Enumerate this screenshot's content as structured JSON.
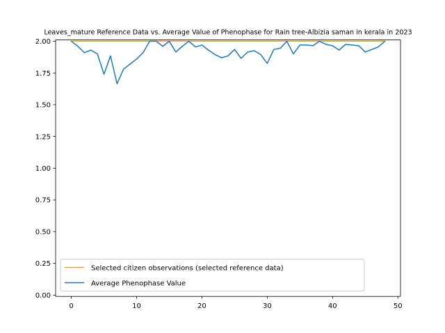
{
  "chart_data": {
    "type": "line",
    "title": "Leaves_mature Reference Data vs. Average Value of Phenophase for Rain tree-Albizia saman in kerala in 2023",
    "xlabel": "",
    "ylabel": "",
    "xlim": [
      -2.4,
      50.4
    ],
    "ylim": [
      -0.01,
      2.01
    ],
    "xticks": [
      0,
      10,
      20,
      30,
      40,
      50
    ],
    "yticks": [
      "0.00",
      "0.25",
      "0.50",
      "0.75",
      "1.00",
      "1.25",
      "1.50",
      "1.75",
      "2.00"
    ],
    "legend_position": "lower-left",
    "x": [
      0,
      1,
      2,
      3,
      4,
      5,
      6,
      7,
      8,
      9,
      10,
      11,
      12,
      13,
      14,
      15,
      16,
      17,
      18,
      19,
      20,
      21,
      22,
      23,
      24,
      25,
      26,
      27,
      28,
      29,
      30,
      31,
      32,
      33,
      34,
      35,
      36,
      37,
      38,
      39,
      40,
      41,
      42,
      43,
      44,
      45,
      46,
      47,
      48
    ],
    "series": [
      {
        "name": "Selected citizen observations (selected reference data)",
        "color": "#ffa500",
        "values": [
          2,
          2,
          2,
          2,
          2,
          2,
          2,
          2,
          2,
          2,
          2,
          2,
          2,
          2,
          2,
          2,
          2,
          2,
          2,
          2,
          2,
          2,
          2,
          2,
          2,
          2,
          2,
          2,
          2,
          2,
          2,
          2,
          2,
          2,
          2,
          2,
          2,
          2,
          2,
          2,
          2,
          2,
          2,
          2,
          2,
          2,
          2,
          2,
          2
        ]
      },
      {
        "name": "Average Phenophase Value",
        "color": "#1f77b4",
        "values": [
          2.0,
          1.96,
          1.91,
          1.93,
          1.9,
          1.74,
          1.885,
          1.665,
          1.78,
          1.82,
          1.86,
          1.91,
          2.0,
          2.0,
          1.96,
          2.0,
          1.915,
          1.96,
          2.0,
          1.955,
          1.97,
          1.93,
          1.895,
          1.87,
          1.885,
          1.935,
          1.865,
          1.915,
          1.925,
          1.895,
          1.825,
          1.935,
          1.945,
          2.0,
          1.9,
          1.97,
          1.97,
          1.965,
          2.0,
          1.975,
          1.965,
          1.93,
          1.975,
          1.97,
          1.965,
          1.915,
          1.935,
          1.955,
          2.0
        ]
      }
    ]
  }
}
